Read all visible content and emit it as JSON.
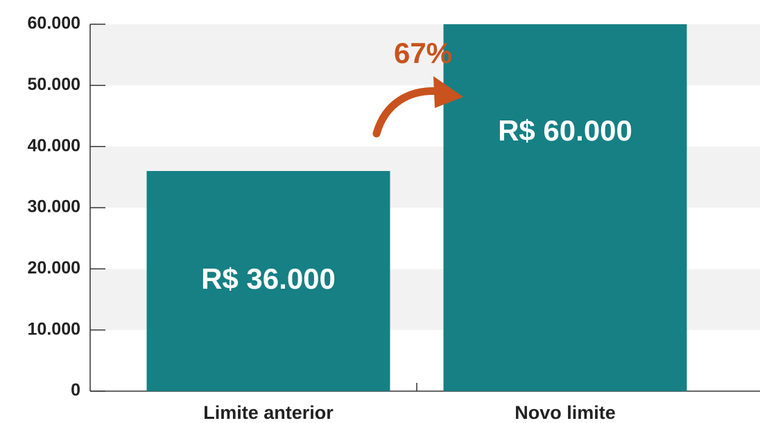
{
  "chart_data": {
    "type": "bar",
    "categories": [
      "Limite anterior",
      "Novo limite"
    ],
    "values": [
      36000,
      60000
    ],
    "value_labels": [
      "R$ 36.000",
      "R$ 60.000"
    ],
    "color": "#168084",
    "annotation": "67%",
    "annotation_color": "#c8531e",
    "ylim": [
      0,
      60000
    ],
    "yticks": [
      0,
      {
        "value": 10000,
        "label": "10.000"
      },
      {
        "value": 20000,
        "label": "20.000"
      },
      {
        "value": 30000,
        "label": "30.000"
      },
      {
        "value": 40000,
        "label": "40.000"
      },
      {
        "value": 50000,
        "label": "50.000"
      },
      {
        "value": 60000,
        "label": "60.000"
      }
    ],
    "grid": true
  }
}
